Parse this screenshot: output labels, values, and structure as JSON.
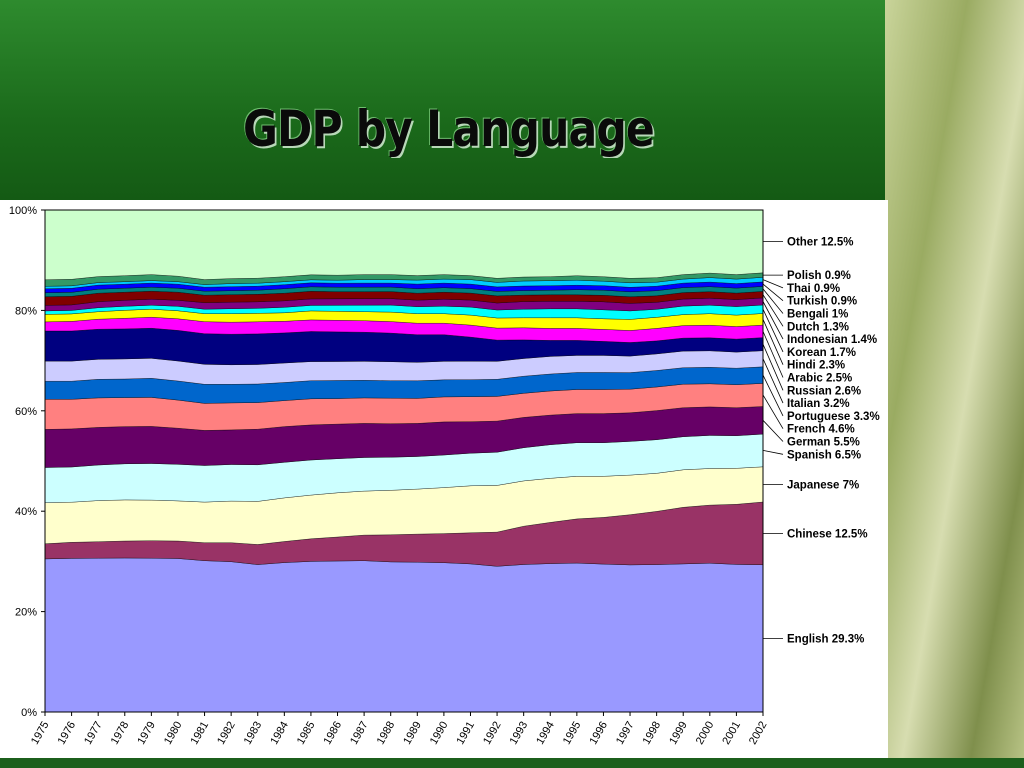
{
  "slide": {
    "title": "GDP by Language"
  },
  "chart_data": {
    "type": "area",
    "stacked": true,
    "percent": true,
    "title": "",
    "xlabel": "",
    "ylabel": "",
    "ylim": [
      0,
      100
    ],
    "y_ticks": [
      "0%",
      "20%",
      "40%",
      "60%",
      "80%",
      "100%"
    ],
    "x": [
      "1975",
      "1976",
      "1977",
      "1978",
      "1979",
      "1980",
      "1981",
      "1982",
      "1983",
      "1984",
      "1985",
      "1986",
      "1987",
      "1988",
      "1989",
      "1990",
      "1991",
      "1992",
      "1993",
      "1994",
      "1995",
      "1996",
      "1997",
      "1998",
      "1999",
      "2000",
      "2001",
      "2002"
    ],
    "series": [
      {
        "name": "English",
        "label": "English 29.3%",
        "color": "#9999ff",
        "values": [
          30.5,
          30.6,
          30.7,
          30.7,
          30.7,
          30.6,
          30.2,
          30.0,
          29.4,
          29.8,
          30.0,
          30.1,
          30.2,
          30.0,
          29.9,
          29.8,
          29.6,
          29.0,
          29.3,
          29.6,
          29.7,
          29.5,
          29.3,
          29.4,
          29.6,
          29.7,
          29.5,
          29.3
        ]
      },
      {
        "name": "Chinese",
        "label": "Chinese 12.5%",
        "color": "#993366",
        "values": [
          3.0,
          3.2,
          3.3,
          3.4,
          3.5,
          3.5,
          3.6,
          3.8,
          4.0,
          4.2,
          4.5,
          4.8,
          5.1,
          5.4,
          5.6,
          5.8,
          6.2,
          6.8,
          7.6,
          8.2,
          8.8,
          9.3,
          10.0,
          10.6,
          11.3,
          11.6,
          12.0,
          12.5
        ]
      },
      {
        "name": "Japanese",
        "label": "Japanese 7%",
        "color": "#ffffcc",
        "values": [
          8.2,
          8.0,
          8.2,
          8.2,
          8.1,
          8.0,
          8.1,
          8.3,
          8.6,
          8.7,
          8.7,
          8.8,
          8.8,
          8.9,
          9.0,
          9.2,
          9.4,
          9.3,
          9.0,
          8.8,
          8.5,
          8.2,
          7.9,
          7.6,
          7.5,
          7.3,
          7.2,
          7.0
        ]
      },
      {
        "name": "Spanish",
        "label": "Spanish 6.5%",
        "color": "#ccffff",
        "values": [
          7.0,
          7.0,
          7.1,
          7.2,
          7.3,
          7.3,
          7.3,
          7.3,
          7.3,
          7.1,
          7.0,
          6.8,
          6.7,
          6.6,
          6.5,
          6.5,
          6.5,
          6.6,
          6.6,
          6.7,
          6.7,
          6.7,
          6.7,
          6.7,
          6.6,
          6.6,
          6.5,
          6.5
        ]
      },
      {
        "name": "German",
        "label": "German 5.5%",
        "color": "#660066",
        "values": [
          7.6,
          7.6,
          7.5,
          7.4,
          7.4,
          7.2,
          7.0,
          6.9,
          7.1,
          7.1,
          7.0,
          6.9,
          6.8,
          6.7,
          6.6,
          6.6,
          6.3,
          6.2,
          6.0,
          5.9,
          5.8,
          5.8,
          5.7,
          5.8,
          5.8,
          5.7,
          5.6,
          5.5
        ]
      },
      {
        "name": "French",
        "label": "French 4.6%",
        "color": "#ff8080",
        "values": [
          6.0,
          5.9,
          5.9,
          5.8,
          5.8,
          5.6,
          5.4,
          5.4,
          5.3,
          5.2,
          5.2,
          5.1,
          5.1,
          5.1,
          5.0,
          5.0,
          5.0,
          4.9,
          4.8,
          4.8,
          4.8,
          4.8,
          4.7,
          4.7,
          4.7,
          4.6,
          4.6,
          4.6
        ]
      },
      {
        "name": "Portuguese",
        "label": "Portuguese 3.3%",
        "color": "#0066cc",
        "values": [
          3.6,
          3.6,
          3.7,
          3.7,
          3.8,
          3.8,
          3.8,
          3.7,
          3.7,
          3.6,
          3.6,
          3.6,
          3.5,
          3.5,
          3.5,
          3.4,
          3.4,
          3.4,
          3.4,
          3.4,
          3.4,
          3.4,
          3.3,
          3.3,
          3.3,
          3.3,
          3.3,
          3.3
        ]
      },
      {
        "name": "Italian",
        "label": "Italian 3.2%",
        "color": "#ccccff",
        "values": [
          4.0,
          4.0,
          4.0,
          4.0,
          4.0,
          4.0,
          4.0,
          3.9,
          3.9,
          3.9,
          3.8,
          3.8,
          3.8,
          3.8,
          3.7,
          3.7,
          3.7,
          3.6,
          3.5,
          3.5,
          3.4,
          3.4,
          3.3,
          3.3,
          3.3,
          3.3,
          3.2,
          3.2
        ]
      },
      {
        "name": "Russian",
        "label": "Russian 2.6%",
        "color": "#000080",
        "values": [
          6.0,
          6.0,
          6.0,
          6.0,
          6.0,
          6.1,
          6.1,
          6.1,
          6.1,
          6.0,
          6.0,
          5.9,
          5.8,
          5.7,
          5.5,
          5.3,
          4.8,
          4.2,
          3.7,
          3.2,
          3.0,
          2.8,
          2.7,
          2.6,
          2.6,
          2.6,
          2.6,
          2.6
        ]
      },
      {
        "name": "Arabic",
        "label": "Arabic 2.5%",
        "color": "#ff00ff",
        "values": [
          1.8,
          1.9,
          2.0,
          2.1,
          2.2,
          2.3,
          2.4,
          2.4,
          2.4,
          2.3,
          2.3,
          2.3,
          2.3,
          2.3,
          2.3,
          2.3,
          2.4,
          2.4,
          2.4,
          2.4,
          2.4,
          2.4,
          2.4,
          2.5,
          2.5,
          2.5,
          2.5,
          2.5
        ]
      },
      {
        "name": "Hindi",
        "label": "Hindi 2.3%",
        "color": "#ffff00",
        "values": [
          1.5,
          1.5,
          1.5,
          1.6,
          1.6,
          1.6,
          1.6,
          1.7,
          1.7,
          1.7,
          1.8,
          1.8,
          1.8,
          1.9,
          1.9,
          1.9,
          2.0,
          2.0,
          2.0,
          2.1,
          2.1,
          2.1,
          2.2,
          2.2,
          2.2,
          2.3,
          2.3,
          2.3
        ]
      },
      {
        "name": "Korean",
        "label": "Korean 1.7%",
        "color": "#00ffff",
        "values": [
          0.7,
          0.7,
          0.8,
          0.8,
          0.8,
          0.9,
          0.9,
          1.0,
          1.0,
          1.1,
          1.1,
          1.2,
          1.3,
          1.4,
          1.4,
          1.5,
          1.6,
          1.6,
          1.7,
          1.8,
          1.8,
          1.8,
          1.7,
          1.6,
          1.7,
          1.7,
          1.7,
          1.7
        ]
      },
      {
        "name": "Indonesian",
        "label": "Indonesian 1.4%",
        "color": "#800080",
        "values": [
          1.1,
          1.1,
          1.2,
          1.2,
          1.2,
          1.2,
          1.3,
          1.3,
          1.3,
          1.3,
          1.3,
          1.3,
          1.3,
          1.3,
          1.3,
          1.4,
          1.4,
          1.4,
          1.5,
          1.5,
          1.5,
          1.6,
          1.5,
          1.4,
          1.4,
          1.4,
          1.4,
          1.4
        ]
      },
      {
        "name": "Dutch",
        "label": "Dutch 1.3%",
        "color": "#800000",
        "values": [
          1.7,
          1.7,
          1.7,
          1.6,
          1.6,
          1.6,
          1.5,
          1.5,
          1.5,
          1.5,
          1.5,
          1.4,
          1.4,
          1.4,
          1.4,
          1.4,
          1.4,
          1.4,
          1.3,
          1.3,
          1.3,
          1.3,
          1.3,
          1.3,
          1.3,
          1.3,
          1.3,
          1.3
        ]
      },
      {
        "name": "Bengali",
        "label": "Bengali 1%",
        "color": "#008080",
        "values": [
          0.8,
          0.8,
          0.8,
          0.8,
          0.8,
          0.8,
          0.8,
          0.8,
          0.8,
          0.9,
          0.9,
          0.9,
          0.9,
          0.9,
          0.9,
          0.9,
          0.9,
          0.9,
          0.9,
          0.9,
          1.0,
          1.0,
          1.0,
          1.0,
          1.0,
          1.0,
          1.0,
          1.0
        ]
      },
      {
        "name": "Turkish",
        "label": "Turkish 0.9%",
        "color": "#0000ff",
        "values": [
          0.8,
          0.8,
          0.8,
          0.8,
          0.8,
          0.8,
          0.8,
          0.8,
          0.8,
          0.8,
          0.8,
          0.8,
          0.8,
          0.8,
          0.9,
          0.9,
          0.9,
          0.9,
          0.9,
          0.9,
          0.9,
          0.9,
          0.9,
          0.9,
          0.9,
          0.9,
          0.9,
          0.9
        ]
      },
      {
        "name": "Thai",
        "label": "Thai 0.9%",
        "color": "#00ccff",
        "values": [
          0.5,
          0.5,
          0.5,
          0.5,
          0.5,
          0.5,
          0.5,
          0.6,
          0.6,
          0.6,
          0.6,
          0.6,
          0.7,
          0.7,
          0.8,
          0.8,
          0.9,
          0.9,
          1.0,
          1.0,
          1.0,
          0.9,
          0.9,
          0.8,
          0.8,
          0.9,
          0.9,
          0.9
        ]
      },
      {
        "name": "Polish",
        "label": "Polish 0.9%",
        "color": "#339966",
        "values": [
          1.3,
          1.3,
          1.2,
          1.2,
          1.2,
          1.1,
          1.0,
          1.0,
          1.0,
          1.0,
          1.0,
          1.0,
          1.0,
          1.0,
          0.9,
          0.9,
          0.8,
          0.8,
          0.8,
          0.8,
          0.9,
          0.9,
          0.9,
          0.9,
          0.9,
          0.9,
          0.9,
          0.9
        ]
      },
      {
        "name": "Other",
        "label": "Other 12.5%",
        "color": "#ccffcc",
        "values": [
          13.9,
          13.8,
          13.3,
          13.1,
          12.9,
          13.2,
          13.9,
          13.7,
          13.6,
          13.3,
          12.9,
          13.0,
          12.9,
          12.9,
          13.1,
          12.9,
          13.1,
          13.6,
          13.3,
          13.3,
          13.1,
          13.3,
          13.6,
          13.5,
          12.9,
          12.6,
          12.9,
          12.5
        ]
      }
    ]
  }
}
